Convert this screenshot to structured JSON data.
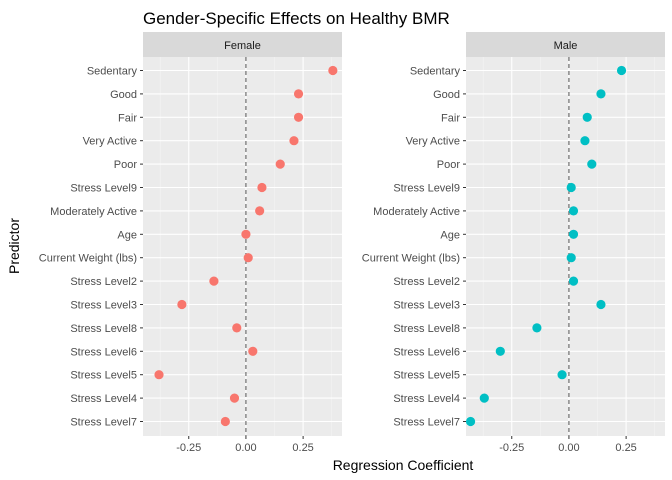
{
  "chart_data": {
    "type": "scatter",
    "title": "Gender-Specific Effects on Healthy BMR",
    "xlabel": "Regression Coefficient",
    "ylabel": "Predictor",
    "xlim": [
      -0.45,
      0.42
    ],
    "x_ticks": [
      "-0.25",
      "0.00",
      "0.25"
    ],
    "x_tick_values": [
      -0.25,
      0.0,
      0.25
    ],
    "reference_line": 0,
    "grid": true,
    "legend": "none",
    "categories": [
      "Sedentary",
      "Good",
      "Fair",
      "Very Active",
      "Poor",
      "Stress Level9",
      "Moderately Active",
      "Age",
      "Current Weight (lbs)",
      "Stress Level2",
      "Stress Level3",
      "Stress Level8",
      "Stress Level6",
      "Stress Level5",
      "Stress Level4",
      "Stress Level7"
    ],
    "series": [
      {
        "facet": "Female",
        "color": "#F8766D",
        "values": [
          0.38,
          0.23,
          0.23,
          0.21,
          0.15,
          0.07,
          0.06,
          0.0,
          0.01,
          -0.14,
          -0.28,
          -0.04,
          0.03,
          -0.38,
          -0.05,
          -0.09
        ]
      },
      {
        "facet": "Male",
        "color": "#00BFC4",
        "values": [
          0.23,
          0.14,
          0.08,
          0.07,
          0.1,
          0.01,
          0.02,
          0.02,
          0.01,
          0.02,
          0.14,
          -0.14,
          -0.3,
          -0.03,
          -0.37,
          -0.43
        ]
      }
    ]
  }
}
